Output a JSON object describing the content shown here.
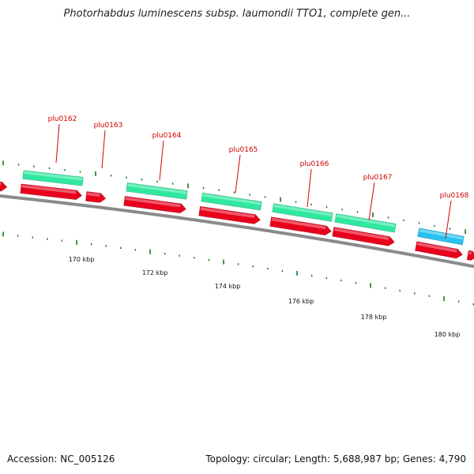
{
  "title": "Photorhabdus luminescens subsp. laumondii TTO1, complete gen...",
  "footer": {
    "accession": "Accession: NC_005126",
    "stats": "Topology: circular; Length: 5,688,987 bp; Genes: 4,790"
  },
  "colors": {
    "backbone": "#8a8a8a",
    "gene_red": "#e8001c",
    "gene_green": "#2ee8a0",
    "gene_blue": "#27c3f0",
    "label_red": "#d00000",
    "tick_green": "#1a7a1a"
  },
  "gene_labels": [
    "plu0162",
    "plu0163",
    "plu0164",
    "plu0165",
    "plu0166",
    "plu0167",
    "plu0168"
  ],
  "scale_labels": [
    "170 kbp",
    "172 kbp",
    "174 kbp",
    "176 kbp",
    "178 kbp",
    "180 kbp"
  ]
}
